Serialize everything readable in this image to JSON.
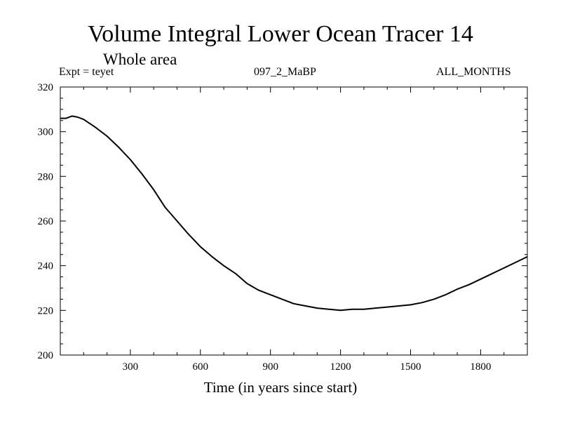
{
  "chart_data": {
    "type": "line",
    "title": "Volume Integral Lower Ocean Tracer 14",
    "subtitle": "Whole area",
    "annotations": {
      "experiment": "Expt = teyet",
      "run": "097_2_MaBP",
      "season": "ALL_MONTHS"
    },
    "xlabel": "Time (in years since start)",
    "ylabel": "",
    "xlim": [
      0,
      2000
    ],
    "ylim": [
      200,
      320
    ],
    "xticks": [
      300,
      600,
      900,
      1200,
      1500,
      1800
    ],
    "yticks": [
      200,
      220,
      240,
      260,
      280,
      300,
      320
    ],
    "grid": false,
    "series": [
      {
        "name": "Lower Ocean Tracer 14",
        "x": [
          0,
          25,
          50,
          75,
          100,
          150,
          200,
          250,
          300,
          350,
          400,
          450,
          500,
          550,
          600,
          650,
          700,
          750,
          800,
          850,
          900,
          950,
          1000,
          1050,
          1100,
          1150,
          1200,
          1250,
          1300,
          1350,
          1400,
          1450,
          1500,
          1550,
          1600,
          1650,
          1700,
          1750,
          1800,
          1850,
          1900,
          1950,
          2000
        ],
        "y": [
          306,
          306,
          307,
          306.5,
          305.5,
          302,
          298,
          293,
          287.5,
          281,
          274,
          266,
          260,
          254,
          248.5,
          244,
          240,
          236.5,
          232,
          229,
          227,
          225,
          223,
          222,
          221,
          220.5,
          220,
          220.5,
          220.5,
          221,
          221.5,
          222,
          222.5,
          223.5,
          225,
          227,
          229.5,
          231.5,
          234,
          236.5,
          239,
          241.5,
          244
        ]
      }
    ]
  }
}
